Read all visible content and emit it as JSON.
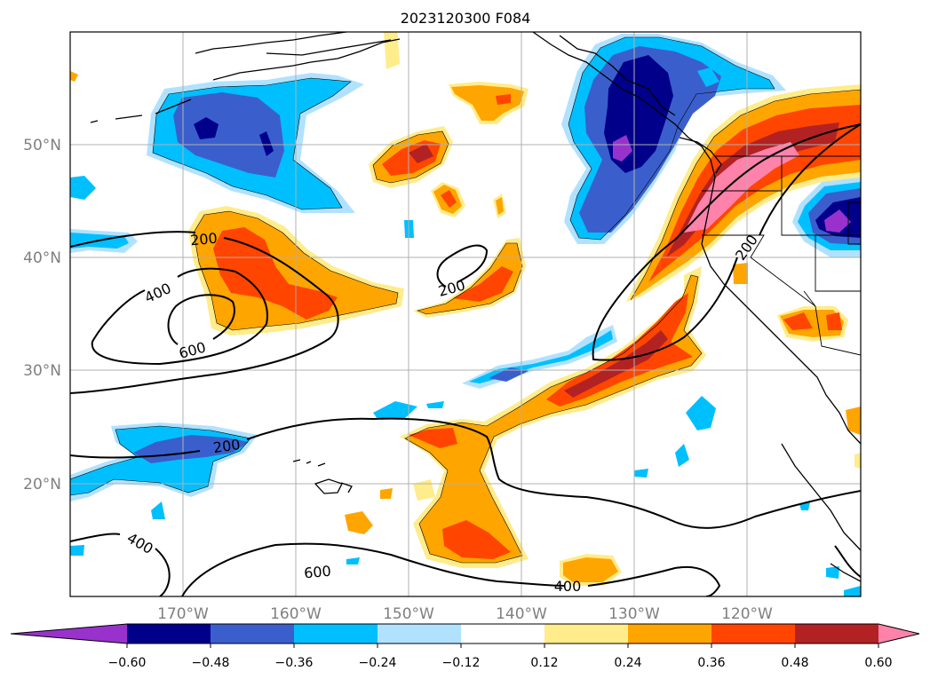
{
  "title": "2023120300 F084",
  "map": {
    "lon_range": [
      180,
      110
    ],
    "lat_range": [
      10,
      60
    ],
    "lon_labels": [
      "170°W",
      "160°W",
      "150°W",
      "140°W",
      "130°W",
      "120°W"
    ],
    "lat_labels": [
      "50°N",
      "40°N",
      "30°N",
      "20°N"
    ],
    "grid": true
  },
  "contours": {
    "levels": [
      "200",
      "400",
      "600"
    ],
    "line_color": "#000000"
  },
  "colorbar": {
    "ticks": [
      "−0.60",
      "−0.48",
      "−0.36",
      "−0.24",
      "−0.12",
      "0.12",
      "0.24",
      "0.36",
      "0.48",
      "0.60"
    ],
    "colors": [
      "#9932CC",
      "#00008B",
      "#3A5FCD",
      "#00BFFF",
      "#B0E2FF",
      "#FFFFFF",
      "#FFEC8B",
      "#FFA500",
      "#FF4500",
      "#B22222",
      "#FF82AB"
    ],
    "extend": "both"
  }
}
